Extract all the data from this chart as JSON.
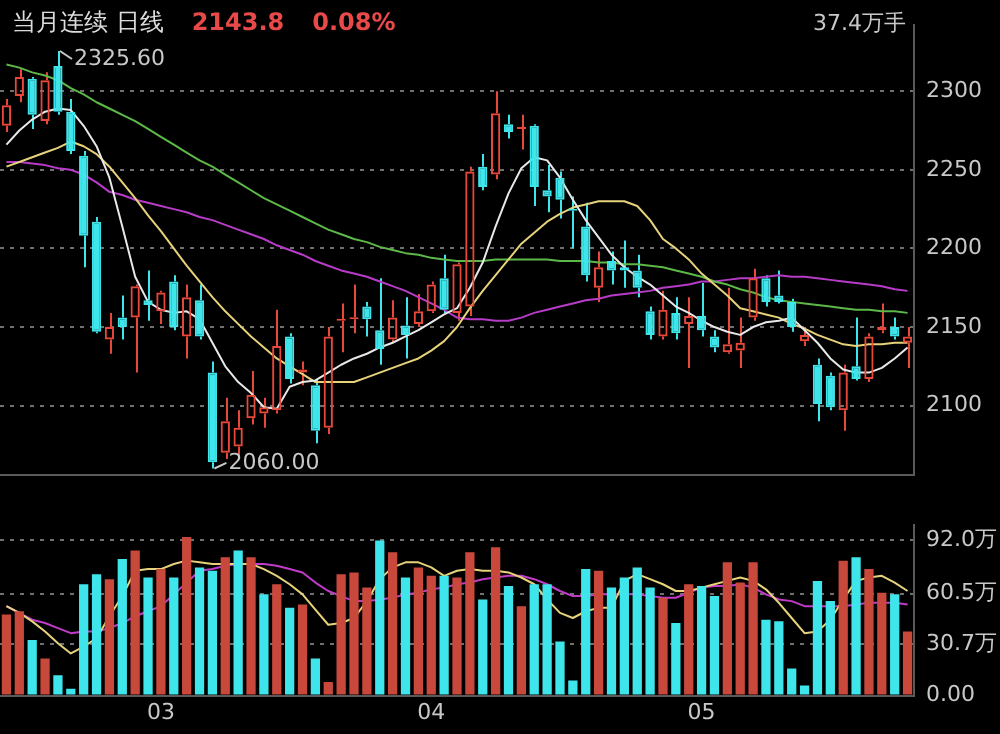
{
  "chart_data": [
    {
      "type": "candlestick",
      "title": "当月连续 日线",
      "annotations": [
        "2143.8",
        "0.08%",
        "37.4万手",
        "2325.60",
        "2060.00"
      ],
      "categories": [
        null,
        null,
        null,
        null,
        null,
        null,
        null,
        null,
        null,
        null,
        null,
        null,
        "03",
        null,
        null,
        null,
        null,
        null,
        null,
        null,
        null,
        null,
        null,
        null,
        null,
        null,
        null,
        null,
        null,
        null,
        null,
        null,
        null,
        "04",
        null,
        null,
        null,
        null,
        null,
        null,
        null,
        null,
        null,
        null,
        null,
        null,
        null,
        null,
        null,
        null,
        null,
        null,
        null,
        null,
        "05",
        null,
        null,
        null,
        null,
        null,
        null,
        null,
        null,
        null,
        null,
        null,
        null,
        null,
        null,
        null,
        null
      ],
      "ohlc": [
        [
          2278,
          2295,
          2274,
          2291
        ],
        [
          2297,
          2314,
          2293,
          2309
        ],
        [
          2308,
          2309,
          2276,
          2285
        ],
        [
          2281,
          2312,
          2279,
          2307
        ],
        [
          2316,
          2325.6,
          2285,
          2287
        ],
        [
          2287,
          2295,
          2260,
          2262
        ],
        [
          2259,
          2262,
          2188,
          2208
        ],
        [
          2217,
          2220,
          2146,
          2147
        ],
        [
          2142,
          2159,
          2133,
          2150
        ],
        [
          2156,
          2170,
          2142,
          2150
        ],
        [
          2156,
          2177,
          2121,
          2176
        ],
        [
          2167,
          2186,
          2154,
          2164
        ],
        [
          2160,
          2173,
          2152,
          2172
        ],
        [
          2179,
          2183,
          2148,
          2150
        ],
        [
          2144,
          2177,
          2130,
          2169
        ],
        [
          2167,
          2177,
          2142,
          2144
        ],
        [
          2121,
          2128,
          2060,
          2064
        ],
        [
          2070,
          2105,
          2066,
          2090
        ],
        [
          2074,
          2097,
          2068,
          2086
        ],
        [
          2092,
          2122,
          2088,
          2107
        ],
        [
          2095,
          2105,
          2086,
          2099
        ],
        [
          2097,
          2161,
          2095,
          2138
        ],
        [
          2144,
          2146,
          2114,
          2117
        ],
        [
          2121,
          2128,
          2113,
          2123
        ],
        [
          2113,
          2117,
          2076,
          2084
        ],
        [
          2086,
          2150,
          2082,
          2144
        ],
        [
          2154,
          2165,
          2134,
          2155
        ],
        [
          2155,
          2177,
          2146,
          2156
        ],
        [
          2163,
          2166,
          2144,
          2155
        ],
        [
          2148,
          2181,
          2126,
          2136
        ],
        [
          2142,
          2167,
          2140,
          2156
        ],
        [
          2151,
          2169,
          2130,
          2145
        ],
        [
          2152,
          2171,
          2150,
          2160
        ],
        [
          2160,
          2179,
          2159,
          2177
        ],
        [
          2181,
          2196,
          2159,
          2161
        ],
        [
          2159,
          2191,
          2154,
          2190
        ],
        [
          2163,
          2252,
          2157,
          2249
        ],
        [
          2252,
          2260,
          2237,
          2239
        ],
        [
          2247,
          2300,
          2244,
          2286
        ],
        [
          2279,
          2285,
          2270,
          2274
        ],
        [
          2276,
          2285,
          2263,
          2277
        ],
        [
          2278,
          2279,
          2227,
          2239
        ],
        [
          2237,
          2253,
          2223,
          2233
        ],
        [
          2245,
          2249,
          2219,
          2231
        ],
        [
          2225,
          2233,
          2200,
          2224
        ],
        [
          2214,
          2229,
          2179,
          2183
        ],
        [
          2175,
          2198,
          2166,
          2188
        ],
        [
          2192,
          2198,
          2177,
          2186
        ],
        [
          2188,
          2205,
          2175,
          2186
        ],
        [
          2186,
          2196,
          2169,
          2175
        ],
        [
          2160,
          2163,
          2142,
          2145
        ],
        [
          2144,
          2173,
          2142,
          2161
        ],
        [
          2159,
          2169,
          2142,
          2146
        ],
        [
          2152,
          2169,
          2124,
          2157
        ],
        [
          2157,
          2178,
          2144,
          2148
        ],
        [
          2144,
          2148,
          2134,
          2137
        ],
        [
          2134,
          2175,
          2133,
          2139
        ],
        [
          2135,
          2156,
          2124,
          2140
        ],
        [
          2156,
          2187,
          2154,
          2181
        ],
        [
          2181,
          2183,
          2163,
          2166
        ],
        [
          2170,
          2186,
          2165,
          2166
        ],
        [
          2166,
          2168,
          2147,
          2150
        ],
        [
          2141,
          2150,
          2138,
          2145
        ],
        [
          2126,
          2130,
          2090,
          2101
        ],
        [
          2119,
          2121,
          2097,
          2099
        ],
        [
          2097,
          2126,
          2084,
          2121
        ],
        [
          2125,
          2156,
          2116,
          2117
        ],
        [
          2117,
          2146,
          2115,
          2144
        ],
        [
          2148,
          2165,
          2146,
          2150
        ],
        [
          2150,
          2156,
          2142,
          2144
        ],
        [
          2140,
          2150,
          2124,
          2144
        ]
      ],
      "series": [
        {
          "type": "line",
          "color": "#e8e8e8",
          "values": [
            2266,
            2275,
            2282,
            2287,
            2289,
            2288,
            2278,
            2265,
            2245,
            2214,
            2182,
            2166,
            2161,
            2159,
            2160,
            2155,
            2140,
            2125,
            2115,
            2108,
            2099,
            2098,
            2112,
            2115,
            2116,
            2121,
            2126,
            2130,
            2133,
            2137,
            2140,
            2144,
            2148,
            2153,
            2158,
            2162,
            2175,
            2191,
            2214,
            2235,
            2251,
            2258,
            2256,
            2245,
            2231,
            2218,
            2207,
            2196,
            2188,
            2182,
            2177,
            2170,
            2163,
            2159,
            2154,
            2150,
            2147,
            2145,
            2150,
            2153,
            2154,
            2156,
            2148,
            2140,
            2130,
            2123,
            2121,
            2121,
            2124,
            2130,
            2137
          ]
        },
        {
          "type": "line",
          "color": "#e6d27a",
          "values": [
            2252,
            2255,
            2258,
            2261,
            2264,
            2268,
            2265,
            2260,
            2252,
            2242,
            2232,
            2221,
            2211,
            2200,
            2189,
            2179,
            2169,
            2160,
            2152,
            2144,
            2137,
            2130,
            2125,
            2120,
            2115,
            2115,
            2115,
            2115,
            2118,
            2121,
            2124,
            2127,
            2130,
            2135,
            2141,
            2150,
            2162,
            2173,
            2183,
            2193,
            2203,
            2210,
            2217,
            2222,
            2226,
            2228,
            2230,
            2230,
            2230,
            2227,
            2218,
            2206,
            2200,
            2193,
            2184,
            2177,
            2170,
            2162,
            2160,
            2158,
            2156,
            2152,
            2149,
            2145,
            2142,
            2139,
            2138,
            2139,
            2139,
            2140,
            2140
          ]
        },
        {
          "type": "line",
          "color": "#5cb848",
          "values": [
            2317,
            2315,
            2312,
            2310,
            2307,
            2302,
            2298,
            2293,
            2289,
            2285,
            2281,
            2276,
            2271,
            2266,
            2261,
            2256,
            2252,
            2247,
            2242,
            2237,
            2232,
            2228,
            2224,
            2220,
            2216,
            2212,
            2209,
            2206,
            2204,
            2201,
            2199,
            2197,
            2196,
            2194,
            2193,
            2192,
            2192,
            2192,
            2193,
            2193,
            2193,
            2193,
            2193,
            2192,
            2192,
            2192,
            2191,
            2191,
            2190,
            2190,
            2189,
            2188,
            2186,
            2184,
            2182,
            2179,
            2177,
            2174,
            2172,
            2169,
            2167,
            2166,
            2165,
            2164,
            2163,
            2162,
            2161,
            2161,
            2160,
            2160,
            2159
          ]
        },
        {
          "type": "line",
          "color": "#b63cc8",
          "values": [
            2255,
            2255,
            2254,
            2253,
            2251,
            2250,
            2247,
            2242,
            2236,
            2234,
            2231,
            2229,
            2227,
            2225,
            2223,
            2220,
            2218,
            2215,
            2212,
            2209,
            2206,
            2202,
            2199,
            2196,
            2192,
            2189,
            2186,
            2184,
            2182,
            2179,
            2176,
            2173,
            2169,
            2165,
            2161,
            2156,
            2155,
            2155,
            2154,
            2154,
            2156,
            2159,
            2161,
            2163,
            2165,
            2167,
            2168,
            2170,
            2171,
            2172,
            2173,
            2175,
            2176,
            2177,
            2179,
            2179,
            2180,
            2181,
            2181,
            2182,
            2183,
            2182,
            2182,
            2181,
            2180,
            2179,
            2178,
            2177,
            2176,
            2174,
            2173
          ]
        }
      ],
      "ylim": [
        2056,
        2342
      ],
      "yticks": [
        2100,
        2150,
        2200,
        2250,
        2300
      ],
      "grid": "y",
      "tick_labels": "y"
    },
    {
      "type": "bar",
      "categories": [
        null,
        null,
        null,
        null,
        null,
        null,
        null,
        null,
        null,
        null,
        null,
        null,
        "03",
        null,
        null,
        null,
        null,
        null,
        null,
        null,
        null,
        null,
        null,
        null,
        null,
        null,
        null,
        null,
        null,
        null,
        null,
        null,
        null,
        "04",
        null,
        null,
        null,
        null,
        null,
        null,
        null,
        null,
        null,
        null,
        null,
        null,
        null,
        null,
        null,
        null,
        null,
        null,
        null,
        null,
        "05",
        null,
        null,
        null,
        null,
        null,
        null,
        null,
        null,
        null,
        null,
        null,
        null,
        null,
        null,
        null,
        null
      ],
      "series": [
        {
          "type": "bar",
          "values": [
            48,
            50,
            33,
            22,
            12,
            4,
            66,
            72,
            69,
            81,
            86,
            70,
            75,
            70,
            94,
            76,
            74,
            82,
            86,
            82,
            60,
            66,
            52,
            54,
            22,
            8,
            72,
            73,
            64,
            92,
            85,
            70,
            76,
            71,
            71,
            70,
            85,
            57,
            88,
            65,
            53,
            66,
            66,
            32,
            9,
            75,
            74,
            64,
            70,
            76,
            64,
            58,
            43,
            66,
            65,
            59,
            79,
            67,
            79,
            45,
            44,
            16,
            6,
            68,
            56,
            80,
            82,
            75,
            61,
            60,
            38
          ],
          "colors": [
            "#c8483c",
            "#c8483c",
            "#3ee6ec",
            "#c8483c",
            "#3ee6ec",
            "#3ee6ec",
            "#3ee6ec",
            "#3ee6ec",
            "#c8483c",
            "#3ee6ec",
            "#c8483c",
            "#3ee6ec",
            "#c8483c",
            "#3ee6ec",
            "#c8483c",
            "#3ee6ec",
            "#3ee6ec",
            "#c8483c",
            "#3ee6ec",
            "#c8483c",
            "#3ee6ec",
            "#c8483c",
            "#3ee6ec",
            "#c8483c",
            "#3ee6ec",
            "#c8483c",
            "#c8483c",
            "#c8483c",
            "#c8483c",
            "#3ee6ec",
            "#c8483c",
            "#3ee6ec",
            "#c8483c",
            "#c8483c",
            "#3ee6ec",
            "#c8483c",
            "#c8483c",
            "#3ee6ec",
            "#c8483c",
            "#3ee6ec",
            "#c8483c",
            "#3ee6ec",
            "#3ee6ec",
            "#3ee6ec",
            "#3ee6ec",
            "#3ee6ec",
            "#c8483c",
            "#3ee6ec",
            "#3ee6ec",
            "#3ee6ec",
            "#3ee6ec",
            "#c8483c",
            "#3ee6ec",
            "#c8483c",
            "#3ee6ec",
            "#3ee6ec",
            "#c8483c",
            "#c8483c",
            "#c8483c",
            "#3ee6ec",
            "#3ee6ec",
            "#3ee6ec",
            "#3ee6ec",
            "#3ee6ec",
            "#3ee6ec",
            "#c8483c",
            "#3ee6ec",
            "#c8483c",
            "#c8483c",
            "#3ee6ec",
            "#c8483c"
          ]
        },
        {
          "type": "line",
          "color": "#e6d27a",
          "values": [
            53,
            49,
            44,
            38,
            31,
            25,
            29,
            34,
            47,
            59,
            74,
            75,
            75,
            78,
            80,
            79,
            78,
            78,
            78,
            78,
            75,
            71,
            66,
            60,
            51,
            42,
            43,
            46,
            56,
            69,
            76,
            79,
            79,
            76,
            71,
            74,
            75,
            74,
            74,
            73,
            70,
            66,
            57,
            49,
            46,
            50,
            52,
            52,
            68,
            72,
            69,
            66,
            62,
            62,
            64,
            66,
            68,
            70,
            68,
            63,
            55,
            46,
            37,
            38,
            45,
            57,
            68,
            70,
            71,
            67,
            62
          ]
        },
        {
          "type": "line",
          "color": "#c03cc8",
          "values": [
            53,
            49,
            45,
            43,
            40,
            37,
            38,
            38,
            40,
            43,
            47,
            50,
            53,
            60,
            67,
            74,
            75,
            77,
            78,
            78,
            78,
            77,
            75,
            73,
            67,
            62,
            59,
            56,
            56,
            57,
            58,
            60,
            61,
            63,
            64,
            66,
            67,
            69,
            70,
            71,
            71,
            69,
            66,
            62,
            59,
            59,
            60,
            60,
            60,
            60,
            59,
            58,
            58,
            61,
            64,
            65,
            65,
            66,
            64,
            60,
            57,
            56,
            53,
            53,
            53,
            53,
            54,
            55,
            55,
            55,
            54
          ]
        }
      ],
      "ylim": [
        0,
        101
      ],
      "yticks": [
        {
          "value": 0,
          "label": "0.00"
        },
        {
          "value": 30.7,
          "label": "30.7万"
        },
        {
          "value": 60.5,
          "label": "60.5万"
        },
        {
          "value": 92,
          "label": "92.0万"
        }
      ],
      "grid": "y"
    }
  ]
}
